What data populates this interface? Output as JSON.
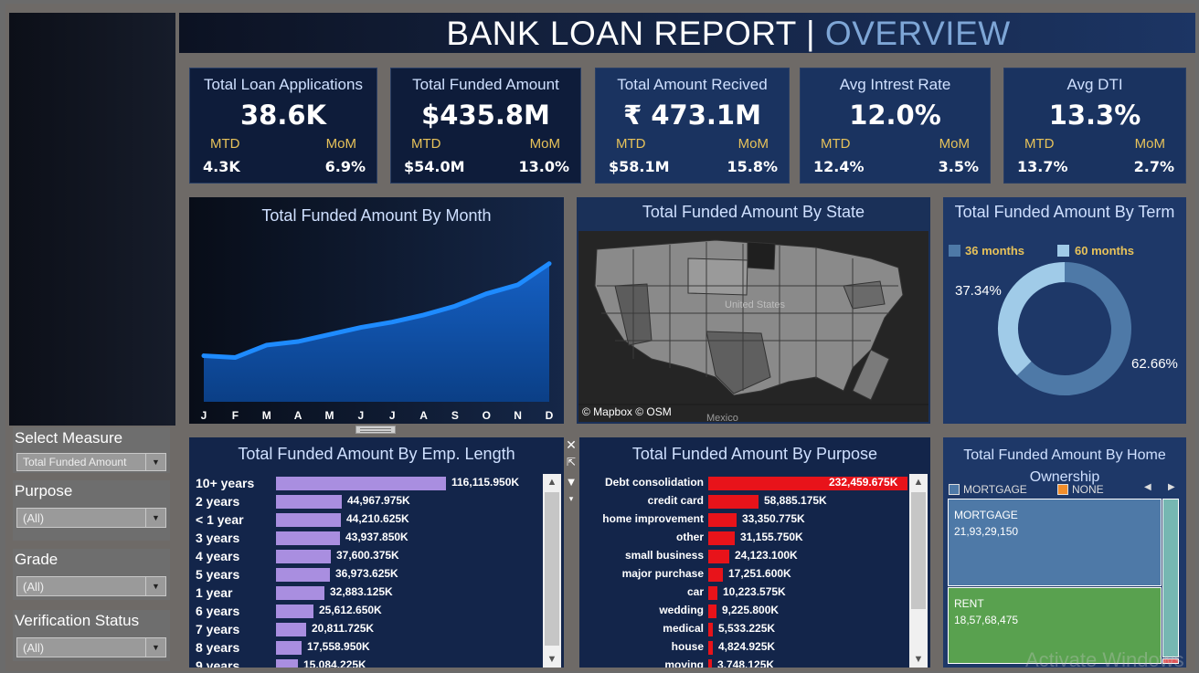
{
  "header": {
    "title_main": "BANK LOAN REPORT |",
    "title_sub": "OVERVIEW"
  },
  "kpis": [
    {
      "title": "Total Loan Applications",
      "value": "38.6K",
      "mtd_label": "MTD",
      "mom_label": "MoM",
      "mtd": "4.3K",
      "mom": "6.9%"
    },
    {
      "title": "Total Funded Amount",
      "value": "$435.8M",
      "mtd_label": "MTD",
      "mom_label": "MoM",
      "mtd": "$54.0M",
      "mom": "13.0%"
    },
    {
      "title": "Total Amount Recived",
      "value": "₹ 473.1M",
      "mtd_label": "MTD",
      "mom_label": "MoM",
      "mtd": "$58.1M",
      "mom": "15.8%"
    },
    {
      "title": "Avg Intrest Rate",
      "value": "12.0%",
      "mtd_label": "MTD",
      "mom_label": "MoM",
      "mtd": "12.4%",
      "mom": "3.5%"
    },
    {
      "title": "Avg DTI",
      "value": "13.3%",
      "mtd_label": "MTD",
      "mom_label": "MoM",
      "mtd": "13.7%",
      "mom": "2.7%"
    }
  ],
  "month_chart": {
    "title": "Total Funded Amount By Month",
    "chart_data": {
      "type": "area",
      "categories": [
        "J",
        "F",
        "M",
        "A",
        "M",
        "J",
        "J",
        "A",
        "S",
        "O",
        "N",
        "D"
      ],
      "values": [
        0.26,
        0.25,
        0.32,
        0.34,
        0.38,
        0.42,
        0.45,
        0.49,
        0.54,
        0.61,
        0.66,
        0.78
      ]
    }
  },
  "state_map": {
    "title": "Total Funded Amount By State",
    "attribution": "© Mapbox © OSM",
    "label_country": "United States",
    "label_mexico": "Mexico"
  },
  "term_chart": {
    "title": "Total Funded Amount By Term",
    "legend": [
      "36 months",
      "60 months"
    ],
    "colors": [
      "#4e79a7",
      "#a0cbe8"
    ],
    "chart_data": {
      "type": "pie",
      "categories": [
        "36 months",
        "60 months"
      ],
      "values": [
        62.66,
        37.34
      ]
    },
    "labels": [
      "37.34%",
      "62.66%"
    ]
  },
  "emp_chart": {
    "title": "Total Funded Amount  By Emp. Length",
    "chart_data": {
      "type": "bar",
      "categories": [
        "10+ years",
        "2 years",
        "< 1 year",
        "3 years",
        "4 years",
        "5 years",
        "1 year",
        "6 years",
        "7 years",
        "8 years",
        "9 years"
      ],
      "values": [
        116115.95,
        44967.975,
        44210.625,
        43937.85,
        37600.375,
        36973.625,
        32883.125,
        25612.65,
        20811.725,
        17558.95,
        15084.225
      ],
      "labels": [
        "116,115.950K",
        "44,967.975K",
        "44,210.625K",
        "43,937.850K",
        "37,600.375K",
        "36,973.625K",
        "32,883.125K",
        "25,612.650K",
        "20,811.725K",
        "17,558.950K",
        "15,084.225K"
      ]
    }
  },
  "purpose_chart": {
    "title": "Total Funded Amount  By Purpose",
    "chart_data": {
      "type": "bar",
      "categories": [
        "Debt consolidation",
        "credit card",
        "home improvement",
        "other",
        "small business",
        "major purchase",
        "car",
        "wedding",
        "medical",
        "house",
        "moving"
      ],
      "values": [
        232459.675,
        58885.175,
        33350.775,
        31155.75,
        24123.1,
        17251.6,
        10223.575,
        9225.8,
        5533.225,
        4824.925,
        3748.125
      ],
      "labels": [
        "232,459.675K",
        "58,885.175K",
        "33,350.775K",
        "31,155.750K",
        "24,123.100K",
        "17,251.600K",
        "10,223.575K",
        "9,225.800K",
        "5,533.225K",
        "4,824.925K",
        "3,748.125K"
      ]
    }
  },
  "home_chart": {
    "title": "Total Funded Amount By Home Ownership",
    "legend": [
      "MORTGAGE",
      "NONE"
    ],
    "legend_colors": [
      "#4e79a7",
      "#f28e2b"
    ],
    "chart_data": {
      "type": "treemap",
      "categories": [
        "MORTGAGE",
        "RENT"
      ],
      "values": [
        219329150,
        185768475
      ]
    },
    "labels": [
      "21,93,29,150",
      "18,57,68,475"
    ],
    "colors": [
      "#4e79a7",
      "#59a14f"
    ]
  },
  "filters": [
    {
      "label": "Select Measure",
      "value": "Total Funded Amount"
    },
    {
      "label": "Purpose",
      "value": "(All)"
    },
    {
      "label": "Grade",
      "value": "(All)"
    },
    {
      "label": "Verification Status",
      "value": "(All)"
    }
  ],
  "watermark": "Activate Windows"
}
